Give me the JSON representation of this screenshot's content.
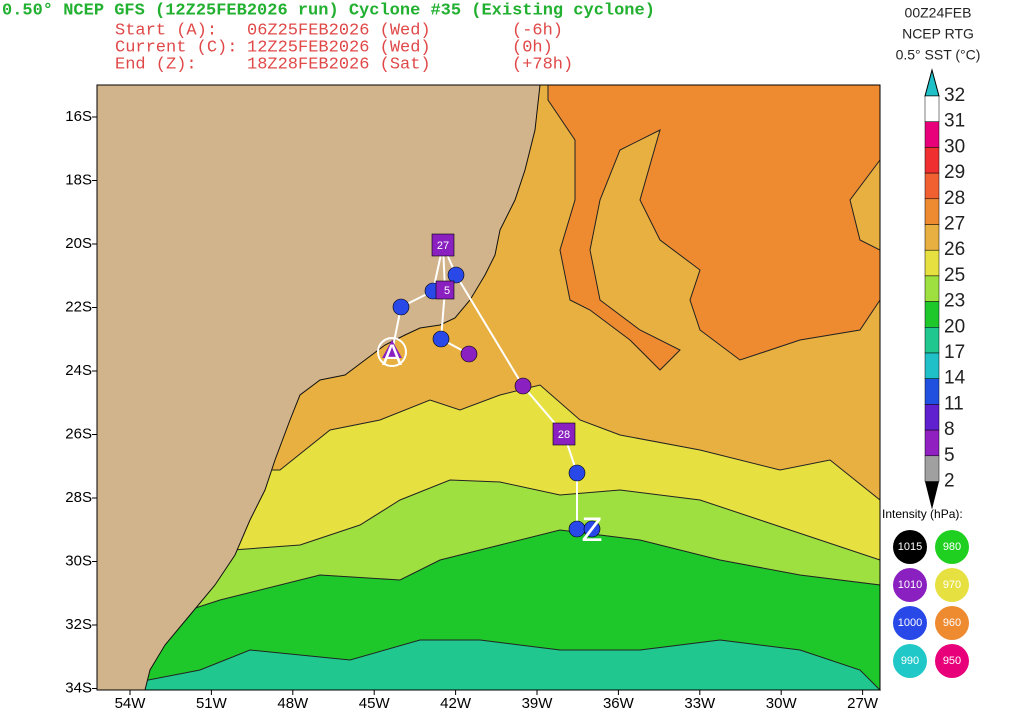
{
  "header": {
    "title": "0.50° NCEP GFS (12Z25FEB2026 run) Cyclone #35 (Existing cyclone)",
    "lines": [
      [
        "Start (A):",
        "06Z25FEB2026 (Wed)",
        "(-6h)"
      ],
      [
        "Current (C):",
        "12Z25FEB2026 (Wed)",
        "(0h)"
      ],
      [
        "End (Z):",
        "18Z28FEB2026 (Sat)",
        "(+78h)"
      ]
    ]
  },
  "source": [
    "00Z24FEB",
    "NCEP RTG",
    "0.5° SST (°C)"
  ],
  "map": {
    "lat_labels": [
      "16S",
      "18S",
      "20S",
      "22S",
      "24S",
      "26S",
      "28S",
      "30S",
      "32S",
      "34S"
    ],
    "lon_labels": [
      "54W",
      "51W",
      "48W",
      "45W",
      "42W",
      "39W",
      "36W",
      "33W",
      "30W",
      "27W"
    ],
    "track_labels": [
      "27",
      "5",
      "28"
    ],
    "points": [
      "A",
      "Z"
    ]
  },
  "colorbar": {
    "labels": [
      "32",
      "31",
      "30",
      "29",
      "28",
      "27",
      "26",
      "25",
      "23",
      "20",
      "17",
      "14",
      "11",
      "8",
      "5",
      "2"
    ]
  },
  "intensity": {
    "title": "Intensity (hPa):",
    "items": [
      "1015",
      "980",
      "1010",
      "970",
      "1000",
      "960",
      "990",
      "950"
    ]
  }
}
